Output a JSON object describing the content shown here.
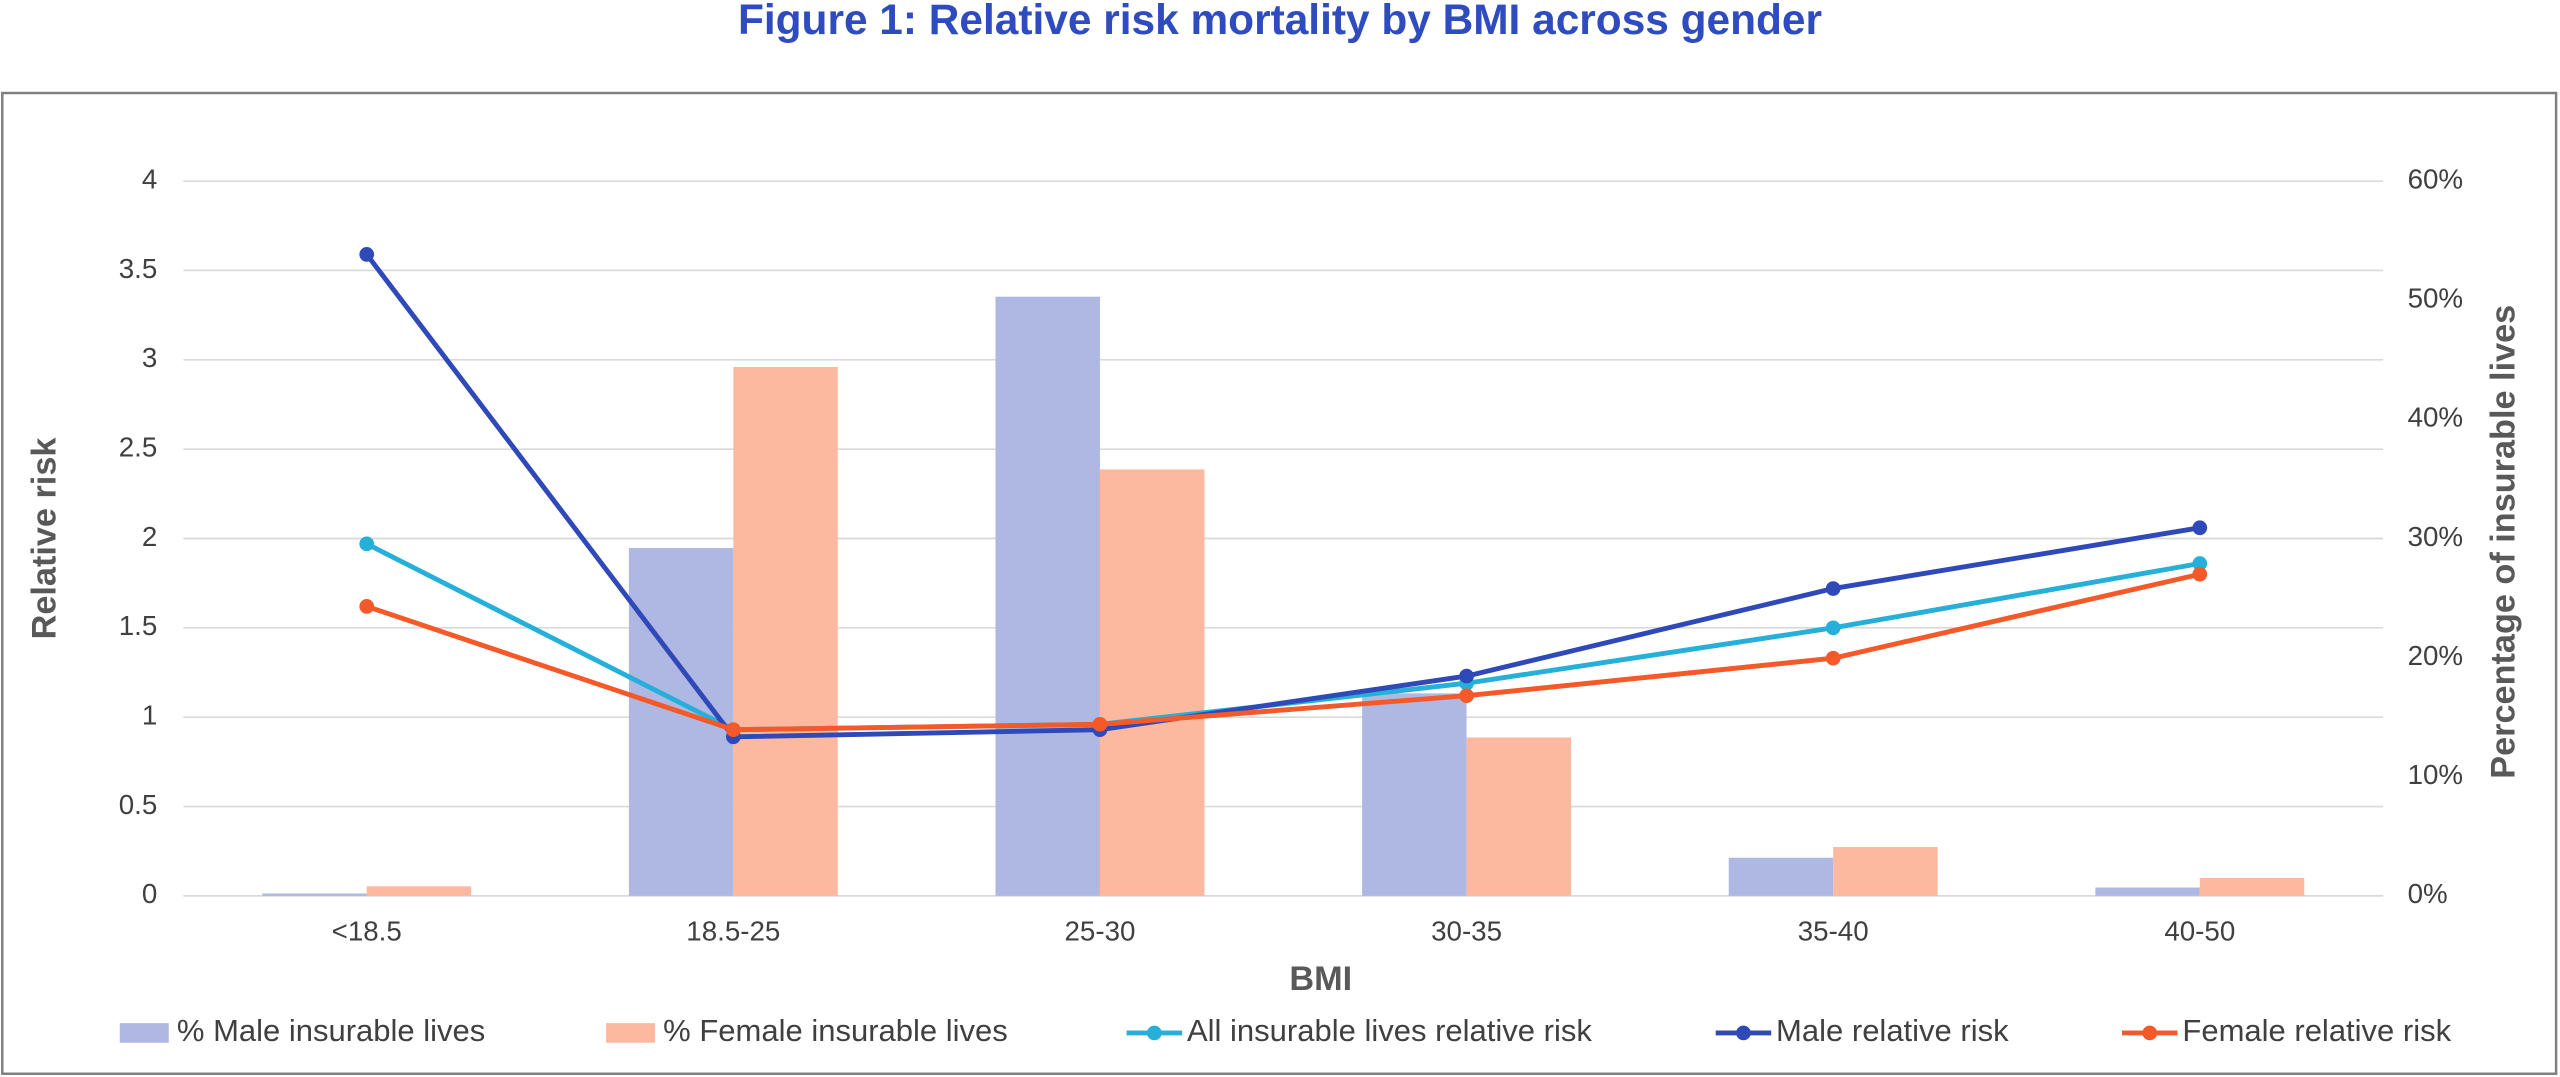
{
  "chart_data": {
    "type": "bar",
    "title": "Figure 1: Relative risk mortality by BMI across gender",
    "x_label": "BMI",
    "y_label": "Relative risk",
    "y2_label": "Percentage of insurable lives",
    "categories": [
      "<18.5",
      "18.5-25",
      "25-30",
      "30-35",
      "35-40",
      "40-50"
    ],
    "ylim": [
      0,
      4
    ],
    "yticks": [
      0,
      0.5,
      1,
      1.5,
      2,
      2.5,
      3,
      3.5,
      4
    ],
    "y2lim": [
      0,
      60
    ],
    "y2ticks": [
      {
        "value": 0,
        "label": "0%"
      },
      {
        "value": 10,
        "label": "10%"
      },
      {
        "value": 20,
        "label": "20%"
      },
      {
        "value": 30,
        "label": "30%"
      },
      {
        "value": 40,
        "label": "40%"
      },
      {
        "value": 50,
        "label": "50%"
      },
      {
        "value": 60,
        "label": "60%"
      }
    ],
    "grid": true,
    "legend": "bottom",
    "series": [
      {
        "name": "% Male insurable lives",
        "type": "bar",
        "axis": "y2",
        "color": "#aeb8e3",
        "values": [
          0.2,
          29.2,
          50.3,
          17.0,
          3.2,
          0.7
        ]
      },
      {
        "name": "% Female insurable lives",
        "type": "bar",
        "axis": "y2",
        "color": "#fdb8a0",
        "values": [
          0.8,
          44.4,
          35.8,
          13.3,
          4.1,
          1.5
        ]
      },
      {
        "name": "All insurable lives relative risk",
        "type": "line",
        "color": "#26b0d9",
        "values": [
          1.97,
          0.93,
          0.96,
          1.19,
          1.5,
          1.86
        ]
      },
      {
        "name": "Male relative risk",
        "type": "line",
        "color": "#3049b8",
        "values": [
          3.59,
          0.89,
          0.93,
          1.23,
          1.72,
          2.06
        ]
      },
      {
        "name": "Female relative risk",
        "type": "line",
        "color": "#f4592a",
        "values": [
          1.62,
          0.93,
          0.96,
          1.12,
          1.33,
          1.8
        ]
      }
    ]
  }
}
